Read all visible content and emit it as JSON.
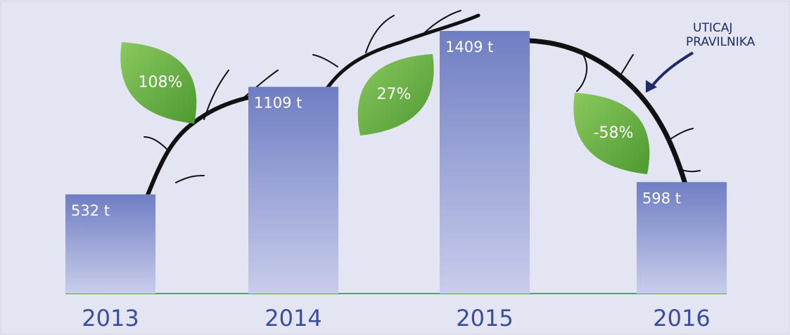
{
  "chart_data": {
    "type": "bar",
    "categories": [
      "2013",
      "2014",
      "2015",
      "2016"
    ],
    "values": [
      532,
      1109,
      1409,
      598
    ],
    "value_labels": [
      "532 t",
      "1109 t",
      "1409 t",
      "598 t"
    ],
    "color": "#7180c4",
    "changes": {
      "values": [
        108,
        27,
        -58
      ],
      "value_labels": [
        "108%",
        "27%",
        "-58%"
      ],
      "color": "#5aa83c"
    },
    "annotation": [
      "UTICAJ",
      "PRAVILNIKA"
    ]
  }
}
